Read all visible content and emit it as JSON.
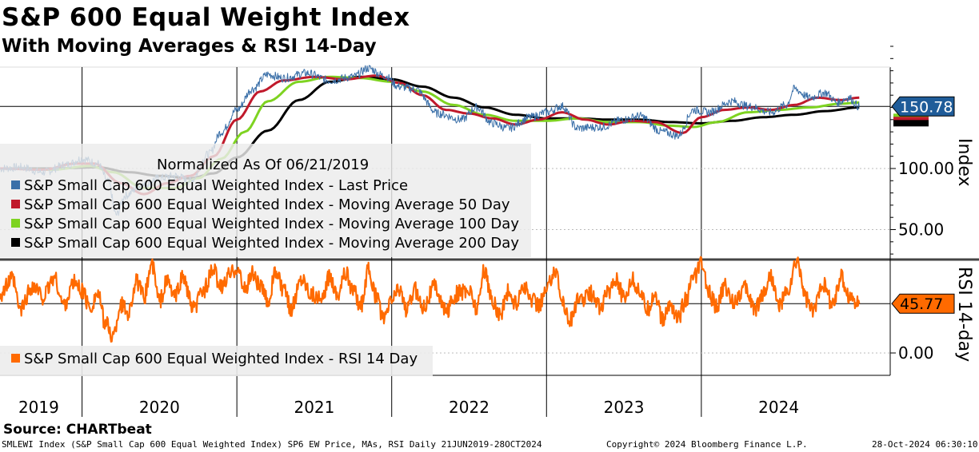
{
  "title": "S&P 600 Equal Weight Index",
  "subtitle": "With Moving Averages & RSI 14-Day",
  "source": "Source: CHARTbeat",
  "footer": {
    "left": "SMLEWI Index (S&P Small Cap 600 Equal Weighted Index) SP6 EW Price, MAs, RSI  Daily 21JUN2019-28OCT2024",
    "center": "Copyright© 2024 Bloomberg Finance L.P.",
    "right": "28-Oct-2024 06:30:10"
  },
  "colors": {
    "price": "#3a6fa8",
    "ma50": "#c0192b",
    "ma100": "#7ed321",
    "ma200": "#000000",
    "rsi": "#ff6a00",
    "price_tag": "#1f5c99",
    "rsi_tag": "#ff6a00"
  },
  "chart_data": [
    {
      "type": "line",
      "note": "Normalized As Of 06/21/2019",
      "ylabel": "Index",
      "ylim": [
        25,
        205
      ],
      "yticks": [
        "100.00",
        "50.00"
      ],
      "last_value_label": "150.78",
      "x_labels": [
        "2019",
        "2020",
        "2021",
        "2022",
        "2023",
        "2024"
      ],
      "x_label_dates": [
        2019.72,
        2020.5,
        2021.5,
        2022.5,
        2023.5,
        2024.5
      ],
      "grid": true,
      "legend_position": "left",
      "series": [
        {
          "name": "S&P Small Cap 600 Equal Weighted Index - Last Price",
          "color_key": "price",
          "points": [
            [
              2019.47,
              100
            ],
            [
              2019.6,
              101
            ],
            [
              2019.75,
              97
            ],
            [
              2019.9,
              103
            ],
            [
              2020.0,
              108
            ],
            [
              2020.1,
              104
            ],
            [
              2020.17,
              89
            ],
            [
              2020.22,
              62
            ],
            [
              2020.28,
              78
            ],
            [
              2020.38,
              86
            ],
            [
              2020.5,
              92
            ],
            [
              2020.6,
              94
            ],
            [
              2020.7,
              90
            ],
            [
              2020.82,
              112
            ],
            [
              2020.9,
              130
            ],
            [
              2021.0,
              148
            ],
            [
              2021.1,
              165
            ],
            [
              2021.2,
              177
            ],
            [
              2021.3,
              174
            ],
            [
              2021.45,
              178
            ],
            [
              2021.6,
              172
            ],
            [
              2021.75,
              175
            ],
            [
              2021.85,
              182
            ],
            [
              2021.95,
              176
            ],
            [
              2022.05,
              167
            ],
            [
              2022.15,
              165
            ],
            [
              2022.3,
              145
            ],
            [
              2022.45,
              140
            ],
            [
              2022.55,
              150
            ],
            [
              2022.65,
              137
            ],
            [
              2022.75,
              133
            ],
            [
              2022.9,
              142
            ],
            [
              2023.0,
              146
            ],
            [
              2023.1,
              151
            ],
            [
              2023.2,
              133
            ],
            [
              2023.35,
              134
            ],
            [
              2023.5,
              140
            ],
            [
              2023.6,
              143
            ],
            [
              2023.75,
              130
            ],
            [
              2023.85,
              127
            ],
            [
              2023.95,
              148
            ],
            [
              2024.05,
              146
            ],
            [
              2024.2,
              155
            ],
            [
              2024.3,
              151
            ],
            [
              2024.45,
              146
            ],
            [
              2024.55,
              152
            ],
            [
              2024.6,
              165
            ],
            [
              2024.7,
              158
            ],
            [
              2024.8,
              162
            ],
            [
              2024.88,
              154
            ],
            [
              2024.95,
              158
            ],
            [
              2025.02,
              150.78
            ]
          ]
        },
        {
          "name": "S&P Small Cap 600 Equal Weighted Index - Moving Average 50 Day",
          "color_key": "ma50",
          "points": [
            [
              2019.47,
              100
            ],
            [
              2019.75,
              99
            ],
            [
              2019.95,
              104
            ],
            [
              2020.08,
              104
            ],
            [
              2020.25,
              88
            ],
            [
              2020.4,
              79
            ],
            [
              2020.55,
              88
            ],
            [
              2020.7,
              94
            ],
            [
              2020.85,
              110
            ],
            [
              2021.0,
              140
            ],
            [
              2021.15,
              163
            ],
            [
              2021.3,
              172
            ],
            [
              2021.5,
              175
            ],
            [
              2021.7,
              173
            ],
            [
              2021.9,
              176
            ],
            [
              2022.05,
              170
            ],
            [
              2022.2,
              160
            ],
            [
              2022.35,
              148
            ],
            [
              2022.5,
              145
            ],
            [
              2022.65,
              141
            ],
            [
              2022.8,
              136
            ],
            [
              2022.95,
              140
            ],
            [
              2023.1,
              146
            ],
            [
              2023.25,
              140
            ],
            [
              2023.4,
              136
            ],
            [
              2023.55,
              139
            ],
            [
              2023.7,
              138
            ],
            [
              2023.88,
              129
            ],
            [
              2024.0,
              142
            ],
            [
              2024.15,
              148
            ],
            [
              2024.3,
              150
            ],
            [
              2024.45,
              148
            ],
            [
              2024.6,
              152
            ],
            [
              2024.75,
              158
            ],
            [
              2024.9,
              156
            ],
            [
              2025.02,
              158
            ]
          ]
        },
        {
          "name": "S&P Small Cap 600 Equal Weighted Index - Moving Average 100 Day",
          "color_key": "ma100",
          "points": [
            [
              2019.47,
              100
            ],
            [
              2019.8,
              99
            ],
            [
              2020.05,
              102
            ],
            [
              2020.2,
              97
            ],
            [
              2020.4,
              84
            ],
            [
              2020.6,
              84
            ],
            [
              2020.75,
              92
            ],
            [
              2020.9,
              108
            ],
            [
              2021.05,
              130
            ],
            [
              2021.2,
              155
            ],
            [
              2021.4,
              171
            ],
            [
              2021.6,
              175
            ],
            [
              2021.8,
              174
            ],
            [
              2022.0,
              171
            ],
            [
              2022.2,
              163
            ],
            [
              2022.4,
              152
            ],
            [
              2022.6,
              144
            ],
            [
              2022.8,
              139
            ],
            [
              2023.0,
              139
            ],
            [
              2023.2,
              141
            ],
            [
              2023.4,
              138
            ],
            [
              2023.6,
              138
            ],
            [
              2023.8,
              135
            ],
            [
              2023.95,
              134
            ],
            [
              2024.1,
              138
            ],
            [
              2024.3,
              146
            ],
            [
              2024.5,
              148
            ],
            [
              2024.7,
              150
            ],
            [
              2024.9,
              153
            ],
            [
              2025.02,
              154
            ]
          ]
        },
        {
          "name": "S&P Small Cap 600 Equal Weighted Index - Moving Average 200 Day",
          "color_key": "ma200",
          "points": [
            [
              2019.47,
              100
            ],
            [
              2019.8,
              100
            ],
            [
              2020.1,
              101
            ],
            [
              2020.3,
              97
            ],
            [
              2020.5,
              94
            ],
            [
              2020.7,
              92
            ],
            [
              2020.85,
              96
            ],
            [
              2021.0,
              109
            ],
            [
              2021.2,
              131
            ],
            [
              2021.4,
              156
            ],
            [
              2021.6,
              171
            ],
            [
              2021.8,
              175
            ],
            [
              2022.0,
              173
            ],
            [
              2022.2,
              167
            ],
            [
              2022.4,
              158
            ],
            [
              2022.6,
              150
            ],
            [
              2022.8,
              144
            ],
            [
              2023.0,
              141
            ],
            [
              2023.2,
              141
            ],
            [
              2023.4,
              140
            ],
            [
              2023.6,
              140
            ],
            [
              2023.8,
              138
            ],
            [
              2024.0,
              137
            ],
            [
              2024.2,
              139
            ],
            [
              2024.4,
              142
            ],
            [
              2024.6,
              144
            ],
            [
              2024.8,
              147
            ],
            [
              2025.02,
              150
            ]
          ]
        }
      ]
    },
    {
      "type": "line",
      "ylabel": "RSI 14-day",
      "ylim": [
        -30,
        115
      ],
      "yticks": [
        "0.00"
      ],
      "last_value_label": "45.77",
      "legend_position": "left",
      "series": [
        {
          "name": "S&P Small Cap 600 Equal Weighted Index - RSI 14 Day",
          "color_key": "rsi",
          "points": [
            [
              2019.47,
              55
            ],
            [
              2019.55,
              68
            ],
            [
              2019.6,
              40
            ],
            [
              2019.68,
              62
            ],
            [
              2019.75,
              52
            ],
            [
              2019.82,
              70
            ],
            [
              2019.88,
              45
            ],
            [
              2019.95,
              65
            ],
            [
              2020.0,
              58
            ],
            [
              2020.05,
              42
            ],
            [
              2020.1,
              55
            ],
            [
              2020.15,
              28
            ],
            [
              2020.2,
              15
            ],
            [
              2020.25,
              45
            ],
            [
              2020.3,
              38
            ],
            [
              2020.35,
              66
            ],
            [
              2020.4,
              52
            ],
            [
              2020.45,
              82
            ],
            [
              2020.5,
              48
            ],
            [
              2020.55,
              66
            ],
            [
              2020.6,
              52
            ],
            [
              2020.65,
              70
            ],
            [
              2020.72,
              40
            ],
            [
              2020.78,
              58
            ],
            [
              2020.85,
              76
            ],
            [
              2020.9,
              60
            ],
            [
              2020.95,
              72
            ],
            [
              2021.0,
              80
            ],
            [
              2021.05,
              58
            ],
            [
              2021.1,
              74
            ],
            [
              2021.15,
              62
            ],
            [
              2021.2,
              48
            ],
            [
              2021.25,
              75
            ],
            [
              2021.3,
              58
            ],
            [
              2021.35,
              42
            ],
            [
              2021.42,
              70
            ],
            [
              2021.48,
              56
            ],
            [
              2021.55,
              48
            ],
            [
              2021.6,
              72
            ],
            [
              2021.65,
              55
            ],
            [
              2021.7,
              74
            ],
            [
              2021.75,
              58
            ],
            [
              2021.8,
              44
            ],
            [
              2021.85,
              76
            ],
            [
              2021.9,
              52
            ],
            [
              2021.95,
              30
            ],
            [
              2022.0,
              50
            ],
            [
              2022.05,
              60
            ],
            [
              2022.1,
              40
            ],
            [
              2022.15,
              58
            ],
            [
              2022.2,
              44
            ],
            [
              2022.28,
              62
            ],
            [
              2022.35,
              38
            ],
            [
              2022.42,
              55
            ],
            [
              2022.5,
              58
            ],
            [
              2022.55,
              42
            ],
            [
              2022.6,
              76
            ],
            [
              2022.65,
              48
            ],
            [
              2022.7,
              35
            ],
            [
              2022.75,
              56
            ],
            [
              2022.8,
              45
            ],
            [
              2022.85,
              62
            ],
            [
              2022.9,
              50
            ],
            [
              2022.95,
              45
            ],
            [
              2023.0,
              58
            ],
            [
              2023.05,
              78
            ],
            [
              2023.1,
              50
            ],
            [
              2023.15,
              30
            ],
            [
              2023.2,
              48
            ],
            [
              2023.3,
              55
            ],
            [
              2023.35,
              42
            ],
            [
              2023.4,
              58
            ],
            [
              2023.45,
              70
            ],
            [
              2023.5,
              50
            ],
            [
              2023.55,
              68
            ],
            [
              2023.6,
              58
            ],
            [
              2023.65,
              40
            ],
            [
              2023.7,
              55
            ],
            [
              2023.75,
              30
            ],
            [
              2023.8,
              45
            ],
            [
              2023.85,
              32
            ],
            [
              2023.9,
              50
            ],
            [
              2023.95,
              70
            ],
            [
              2024.0,
              82
            ],
            [
              2024.05,
              55
            ],
            [
              2024.1,
              42
            ],
            [
              2024.15,
              62
            ],
            [
              2024.2,
              48
            ],
            [
              2024.28,
              60
            ],
            [
              2024.35,
              42
            ],
            [
              2024.4,
              56
            ],
            [
              2024.45,
              72
            ],
            [
              2024.5,
              44
            ],
            [
              2024.55,
              55
            ],
            [
              2024.62,
              84
            ],
            [
              2024.68,
              50
            ],
            [
              2024.72,
              38
            ],
            [
              2024.78,
              66
            ],
            [
              2024.85,
              45
            ],
            [
              2024.9,
              70
            ],
            [
              2024.96,
              52
            ],
            [
              2025.02,
              45.77
            ]
          ]
        }
      ]
    }
  ]
}
